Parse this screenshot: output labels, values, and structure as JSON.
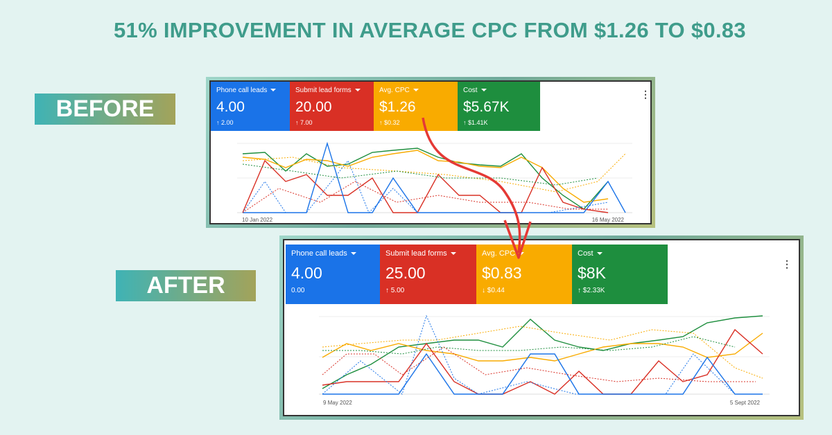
{
  "headline": "51% IMPROVEMENT IN AVERAGE CPC FROM $1.26 TO $0.83",
  "before": {
    "tag": "BEFORE",
    "metrics": [
      {
        "label": "Phone call leads",
        "value": "4.00",
        "delta": "↑ 2.00"
      },
      {
        "label": "Submit lead forms",
        "value": "20.00",
        "delta": "↑ 7.00"
      },
      {
        "label": "Avg. CPC",
        "value": "$1.26",
        "delta": "↑ $0.32"
      },
      {
        "label": "Cost",
        "value": "$5.67K",
        "delta": "↑ $1.41K"
      }
    ],
    "start_date": "10 Jan 2022",
    "end_date": "16 May 2022"
  },
  "after": {
    "tag": "AFTER",
    "metrics": [
      {
        "label": "Phone call leads",
        "value": "4.00",
        "delta": "0.00"
      },
      {
        "label": "Submit lead forms",
        "value": "25.00",
        "delta": "↑ 5.00"
      },
      {
        "label": "Avg. CPC",
        "value": "$0.83",
        "delta": "↓ $0.44"
      },
      {
        "label": "Cost",
        "value": "$8K",
        "delta": "↑ $2.33K"
      }
    ],
    "start_date": "9 May 2022",
    "end_date": "5 Sept 2022"
  }
}
